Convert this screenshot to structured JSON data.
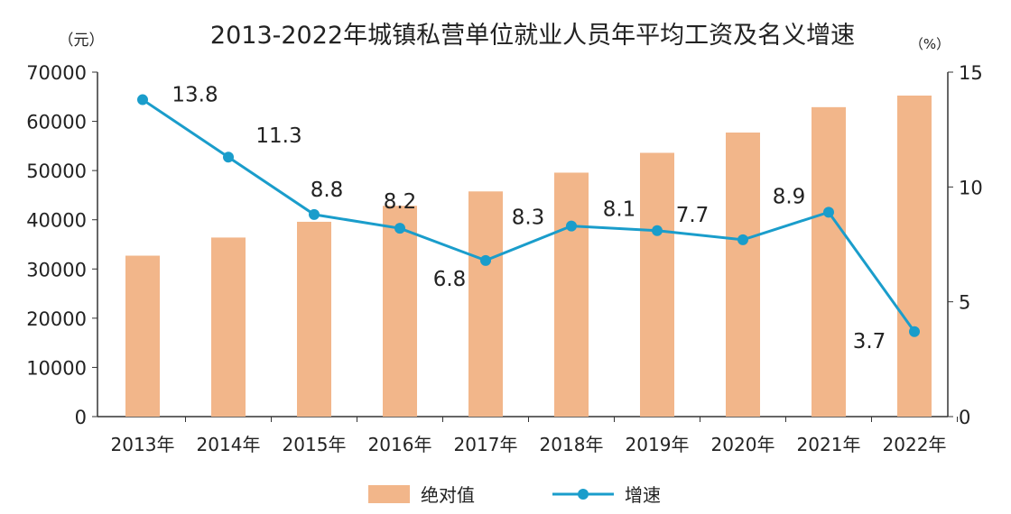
{
  "chart_data": {
    "type": "bar+line",
    "title": "2013-2022年城镇私营单位就业人员年平均工资及名义增速",
    "left_unit": "（元）",
    "right_unit": "（%）",
    "categories": [
      "2013年",
      "2014年",
      "2015年",
      "2016年",
      "2017年",
      "2018年",
      "2019年",
      "2020年",
      "2021年",
      "2022年"
    ],
    "left_axis": {
      "range": [
        0,
        70000
      ],
      "ticks": [
        "0",
        "10000",
        "20000",
        "30000",
        "40000",
        "50000",
        "60000",
        "70000"
      ]
    },
    "right_axis": {
      "range": [
        0,
        15
      ],
      "ticks": [
        "0",
        "5",
        "10",
        "15"
      ]
    },
    "series": [
      {
        "name": "绝对值",
        "type": "bar",
        "axis": "left",
        "color": "#F2B68A",
        "values": [
          32706,
          36390,
          39589,
          42833,
          45761,
          49575,
          53604,
          57727,
          62884,
          65237
        ]
      },
      {
        "name": "增速",
        "type": "line",
        "axis": "right",
        "color": "#1A9DCB",
        "values": [
          13.8,
          11.3,
          8.8,
          8.2,
          6.8,
          8.3,
          8.1,
          7.7,
          8.9,
          3.7
        ],
        "labels": [
          "13.8",
          "11.3",
          "8.8",
          "8.2",
          "6.8",
          "8.3",
          "8.1",
          "7.7",
          "8.9",
          "3.7"
        ]
      }
    ],
    "legend": "bottom",
    "grid": false
  }
}
